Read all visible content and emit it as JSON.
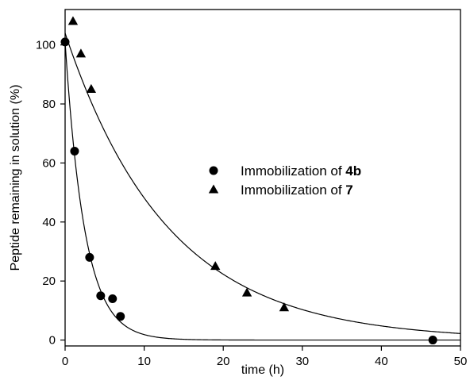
{
  "chart_data": {
    "type": "scatter",
    "title": "",
    "xlabel": "time (h)",
    "ylabel": "Peptide remaining in solution  (%)",
    "xlim": [
      0,
      50
    ],
    "ylim": [
      -2,
      112
    ],
    "xticks": [
      "0",
      "10",
      "20",
      "30",
      "40",
      "50"
    ],
    "yticks": [
      "0",
      "20",
      "40",
      "60",
      "80",
      "100"
    ],
    "grid": false,
    "legend_position": "center-right",
    "series": [
      {
        "name_prefix": "Immobilization of ",
        "name_bold": "4b",
        "marker": "circle",
        "points": [
          {
            "x": 0,
            "y": 101
          },
          {
            "x": 1.2,
            "y": 64
          },
          {
            "x": 3.1,
            "y": 28
          },
          {
            "x": 4.5,
            "y": 15
          },
          {
            "x": 6.0,
            "y": 14
          },
          {
            "x": 7.0,
            "y": 8
          },
          {
            "x": 46.5,
            "y": 0
          }
        ],
        "fit_curve": {
          "type": "exponential",
          "a": 101,
          "k": 0.4
        }
      },
      {
        "name_prefix": "Immobilization of ",
        "name_bold": "7",
        "marker": "triangle",
        "points": [
          {
            "x": 1.0,
            "y": 108
          },
          {
            "x": 2.0,
            "y": 97
          },
          {
            "x": 3.3,
            "y": 85
          },
          {
            "x": 19.0,
            "y": 25
          },
          {
            "x": 23.0,
            "y": 16
          },
          {
            "x": 27.7,
            "y": 11
          }
        ],
        "fit_curve": {
          "type": "exponential",
          "a": 104,
          "k": 0.077
        }
      }
    ]
  }
}
